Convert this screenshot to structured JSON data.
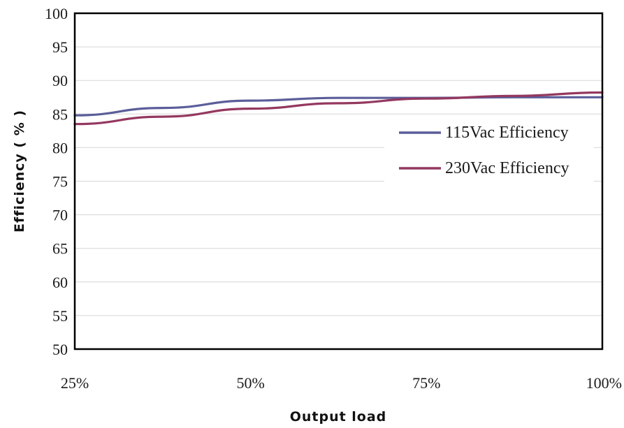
{
  "chart_data": {
    "type": "line",
    "x": [
      "25%",
      "50%",
      "75%",
      "100%"
    ],
    "xlabel": "Output load",
    "ylabel": "Efficiency ( % )",
    "ylim": [
      50,
      100
    ],
    "yticks": [
      "50",
      "55",
      "60",
      "65",
      "70",
      "75",
      "80",
      "85",
      "90",
      "95",
      "100"
    ],
    "grid": "horizontal",
    "legend_position": "right",
    "series": [
      {
        "name": "115Vac Efficiency",
        "color": "#5b5e99",
        "points": [
          [
            25,
            84.8
          ],
          [
            37.5,
            85.9
          ],
          [
            50,
            87.0
          ],
          [
            62.5,
            87.4
          ],
          [
            75,
            87.4
          ],
          [
            87.5,
            87.5
          ],
          [
            100,
            87.5
          ]
        ]
      },
      {
        "name": "230Vac Efficiency",
        "color": "#94385f",
        "points": [
          [
            25,
            83.5
          ],
          [
            37.5,
            84.6
          ],
          [
            50,
            85.8
          ],
          [
            62.5,
            86.6
          ],
          [
            75,
            87.3
          ],
          [
            87.5,
            87.7
          ],
          [
            100,
            88.2
          ]
        ]
      }
    ]
  }
}
